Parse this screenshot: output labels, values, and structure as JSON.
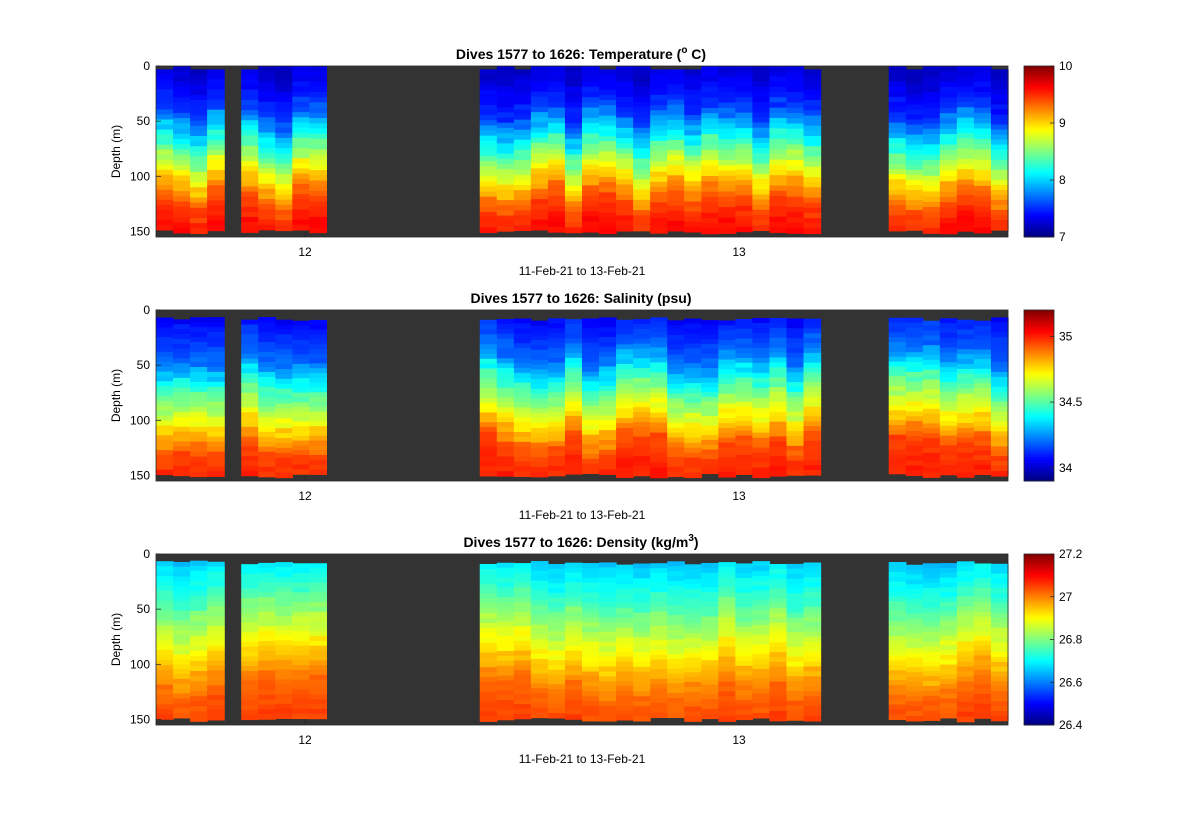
{
  "chart_data": [
    {
      "type": "heatmap",
      "title": "Dives 1577 to 1626: Temperature (",
      "title_super": "o",
      "title_end": " C)",
      "ylabel": "Depth (m)",
      "xlabel": "11-Feb-21 to 13-Feb-21",
      "x_ticks": [
        "12",
        "13"
      ],
      "y_ticks": [
        "0",
        "50",
        "100",
        "150"
      ],
      "ylim": [
        0,
        155
      ],
      "y_reversed": true,
      "colorbar": {
        "colormap": "jet",
        "range": [
          7,
          10
        ],
        "ticks": [
          "7",
          "8",
          "9",
          "10"
        ]
      },
      "missing_color": "#333333",
      "depth_profile": [
        {
          "depth": 0,
          "value": 7.2
        },
        {
          "depth": 40,
          "value": 7.5
        },
        {
          "depth": 70,
          "value": 8.2
        },
        {
          "depth": 100,
          "value": 8.9
        },
        {
          "depth": 125,
          "value": 9.4
        },
        {
          "depth": 150,
          "value": 9.6
        }
      ]
    },
    {
      "type": "heatmap",
      "title": "Dives 1577 to 1626: Salinity (psu)",
      "ylabel": "Depth (m)",
      "xlabel": "11-Feb-21 to 13-Feb-21",
      "x_ticks": [
        "12",
        "13"
      ],
      "y_ticks": [
        "0",
        "50",
        "100",
        "150"
      ],
      "ylim": [
        0,
        155
      ],
      "y_reversed": true,
      "colorbar": {
        "colormap": "jet",
        "range": [
          33.9,
          35.2
        ],
        "ticks": [
          "34",
          "34.5",
          "35"
        ]
      },
      "missing_color": "#333333",
      "depth_profile": [
        {
          "depth": 0,
          "value": 34.05
        },
        {
          "depth": 40,
          "value": 34.2
        },
        {
          "depth": 70,
          "value": 34.5
        },
        {
          "depth": 100,
          "value": 34.75
        },
        {
          "depth": 125,
          "value": 34.95
        },
        {
          "depth": 150,
          "value": 35.0
        }
      ]
    },
    {
      "type": "heatmap",
      "title": "Dives 1577 to 1626: Density (kg/m",
      "title_super": "3",
      "title_end": ")",
      "ylabel": "Depth (m)",
      "xlabel": "11-Feb-21 to 13-Feb-21",
      "x_ticks": [
        "12",
        "13"
      ],
      "y_ticks": [
        "0",
        "50",
        "100",
        "150"
      ],
      "ylim": [
        0,
        155
      ],
      "y_reversed": true,
      "colorbar": {
        "colormap": "jet",
        "range": [
          26.4,
          27.2
        ],
        "ticks": [
          "26.4",
          "26.6",
          "26.8",
          "27",
          "27.2"
        ]
      },
      "missing_color": "#333333",
      "depth_profile": [
        {
          "depth": 0,
          "value": 26.65
        },
        {
          "depth": 40,
          "value": 26.75
        },
        {
          "depth": 70,
          "value": 26.85
        },
        {
          "depth": 100,
          "value": 26.95
        },
        {
          "depth": 125,
          "value": 27.02
        },
        {
          "depth": 150,
          "value": 27.05
        }
      ]
    }
  ]
}
